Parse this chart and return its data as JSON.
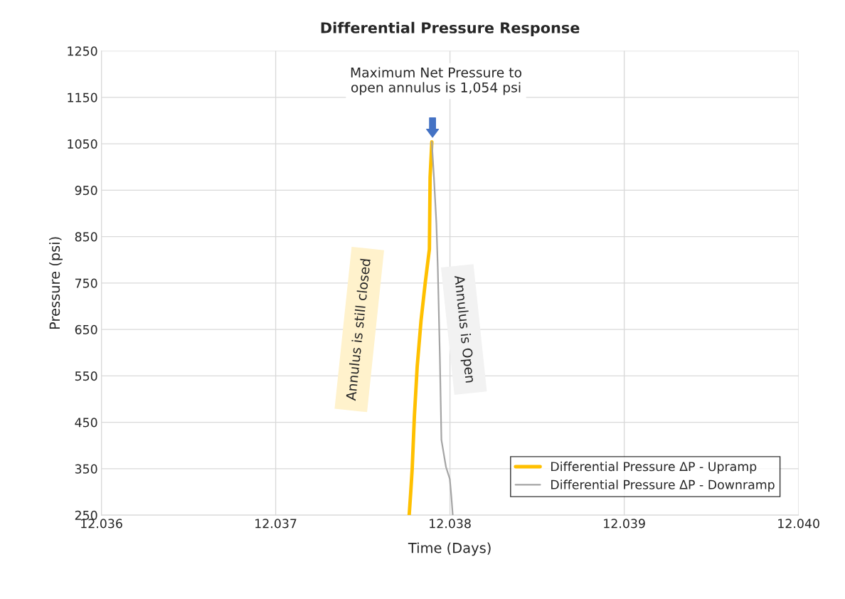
{
  "chart_data": {
    "type": "line",
    "title": "Differential Pressure Response",
    "xlabel": "Time (Days)",
    "ylabel": "Pressure (psi)",
    "xlim": [
      12.036,
      12.04
    ],
    "xticks": [
      12.036,
      12.037,
      12.038,
      12.039,
      {
        "value": 12.04,
        "label": "12.040"
      }
    ],
    "ylim": [
      250,
      1250
    ],
    "yticks": [
      250,
      350,
      450,
      550,
      650,
      750,
      850,
      950,
      1050,
      1150,
      1250
    ],
    "grid": true,
    "legend": "bottom right",
    "marker": "none",
    "line_style": "solid",
    "series": [
      {
        "name": "Differential Pressure ΔP - Upramp",
        "color": "#ffc000",
        "x": [
          12.037766,
          12.037775,
          12.037783,
          12.037796,
          12.037812,
          12.037834,
          12.037858,
          12.037882,
          12.037884,
          12.037886,
          12.037896
        ],
        "values": [
          250,
          300,
          348,
          464,
          570,
          669,
          750,
          823,
          900,
          978,
          1054
        ]
      },
      {
        "name": "Differential Pressure ΔP - Downramp",
        "color": "#a5a5a5",
        "x": [
          12.037896,
          12.037908,
          12.037922,
          12.03793,
          12.037942,
          12.037951,
          12.037977,
          12.037999,
          12.038008,
          12.038016
        ],
        "values": [
          1054,
          978,
          880,
          785,
          592,
          412,
          354,
          328,
          290,
          250
        ]
      }
    ],
    "annotations": [
      "Maximum Net Pressure to\nopen annulus is 1,054 psi",
      "Annulus is still closed",
      "Annulus is Open"
    ]
  }
}
